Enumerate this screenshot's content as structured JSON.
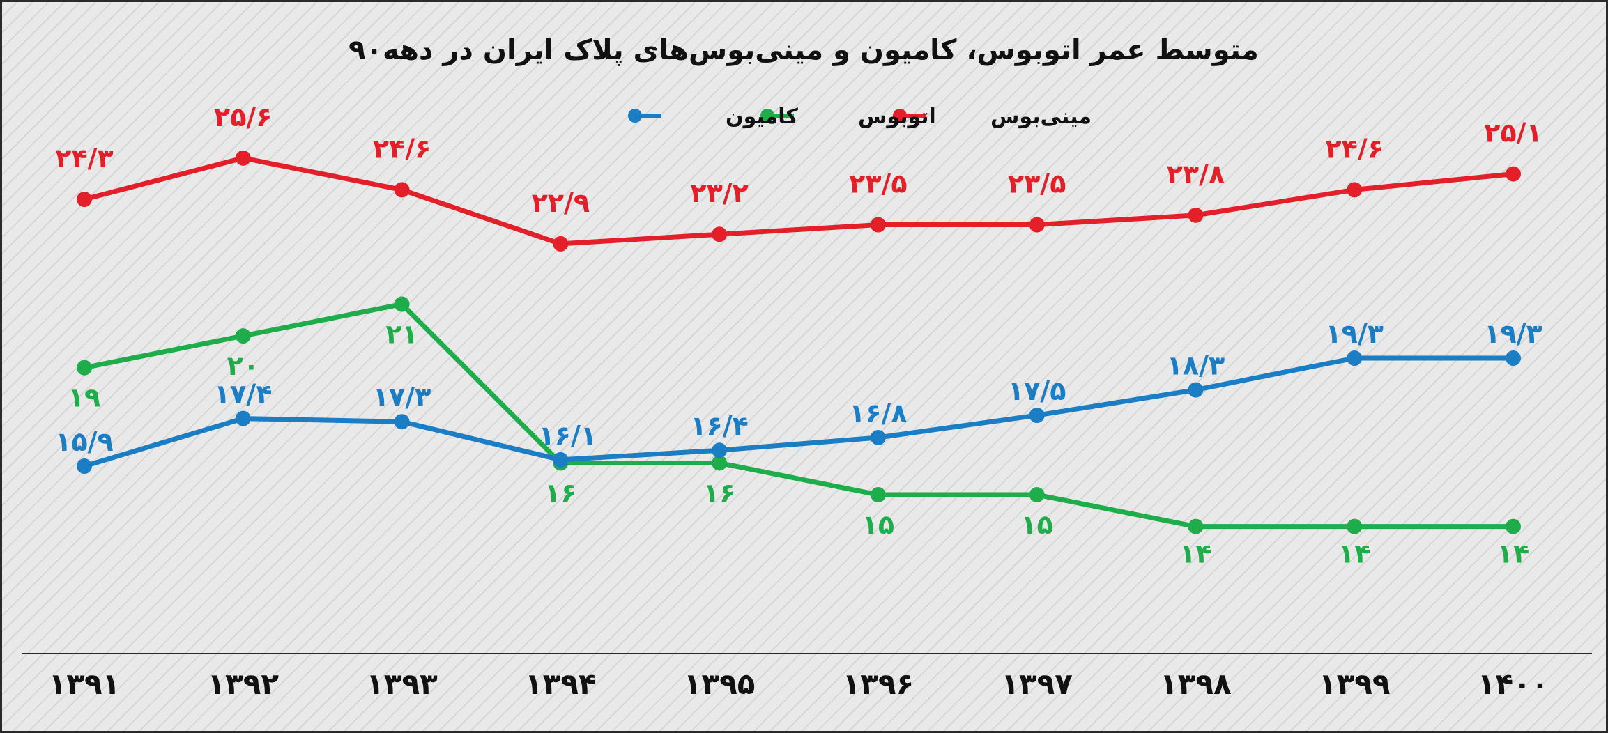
{
  "chart_data": {
    "type": "line",
    "title": "متوسط عمر اتوبوس، کامیون و مینی‌بوس‌های پلاک ایران در دهه۹۰",
    "x": [
      "۱۳۹۱",
      "۱۳۹۲",
      "۱۳۹۳",
      "۱۳۹۴",
      "۱۳۹۵",
      "۱۳۹۶",
      "۱۳۹۷",
      "۱۳۹۸",
      "۱۳۹۹",
      "۱۴۰۰"
    ],
    "ylim": [
      10,
      27
    ],
    "grid": false,
    "legend_position": "top-center",
    "series": [
      {
        "name": "مینی‌بوس",
        "color": "#e3202a",
        "values": [
          24.3,
          25.6,
          24.6,
          22.9,
          23.2,
          23.5,
          23.5,
          23.8,
          24.6,
          25.1
        ],
        "labels": [
          "۲۴/۳",
          "۲۵/۶",
          "۲۴/۶",
          "۲۲/۹",
          "۲۳/۲",
          "۲۳/۵",
          "۲۳/۵",
          "۲۳/۸",
          "۲۴/۶",
          "۲۵/۱"
        ]
      },
      {
        "name": "اتوبوس",
        "color": "#1fad4b",
        "values": [
          19,
          20,
          21,
          16,
          16,
          15,
          15,
          14,
          14,
          14
        ],
        "labels": [
          "۱۹",
          "۲۰",
          "۲۱",
          "۱۶",
          "۱۶",
          "۱۵",
          "۱۵",
          "۱۴",
          "۱۴",
          "۱۴"
        ]
      },
      {
        "name": "کامیون",
        "color": "#1b7dc4",
        "values": [
          15.9,
          17.4,
          17.3,
          16.1,
          16.4,
          16.8,
          17.5,
          18.3,
          19.3,
          19.3
        ],
        "labels": [
          "۱۵/۹",
          "۱۷/۴",
          "۱۷/۳",
          "۱۶/۱",
          "۱۶/۴",
          "۱۶/۸",
          "۱۷/۵",
          "۱۸/۳",
          "۱۹/۳",
          "۱۹/۳"
        ]
      }
    ]
  }
}
